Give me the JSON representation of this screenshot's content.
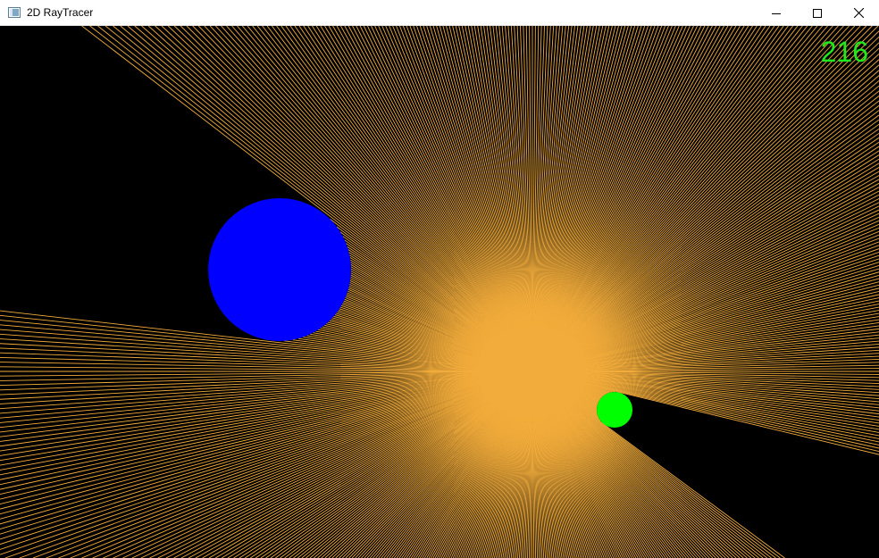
{
  "window": {
    "title": "2D RayTracer",
    "controls": {
      "minimize_icon": "minimize-icon",
      "maximize_icon": "maximize-icon",
      "close_icon": "close-icon"
    }
  },
  "scene": {
    "background_color": "#000000",
    "ray_color": "#f2ac3b",
    "light_color": "#f2ac3b",
    "obstacles": [
      {
        "name": "blue-circle",
        "color": "#0000ff"
      },
      {
        "name": "green-circle",
        "color": "#00ff00"
      }
    ]
  },
  "hud": {
    "fps_counter": "216",
    "fps_color": "#1fe81f"
  }
}
